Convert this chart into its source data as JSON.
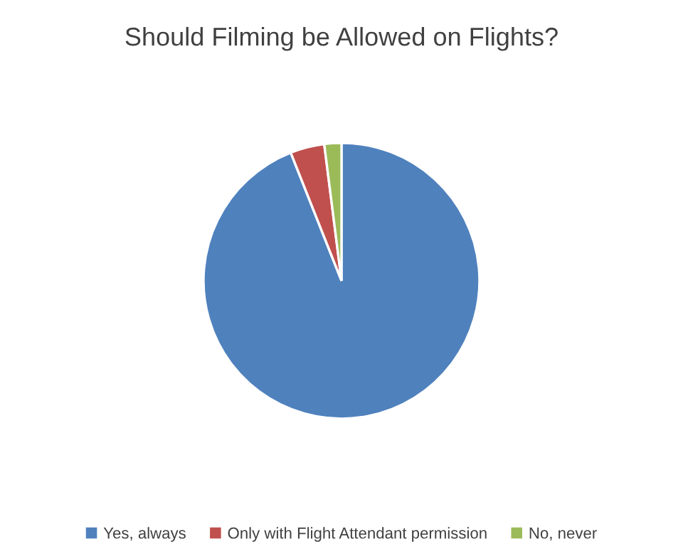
{
  "chart_data": {
    "type": "pie",
    "title": "Should Filming be Allowed on Flights?",
    "categories": [
      "Yes, always",
      "Only with Flight Attendant permission",
      "No, never"
    ],
    "values": [
      94,
      4,
      2
    ],
    "colors": [
      "#4f81bd",
      "#c0504d",
      "#9bbb59"
    ],
    "legend": "bottom"
  }
}
